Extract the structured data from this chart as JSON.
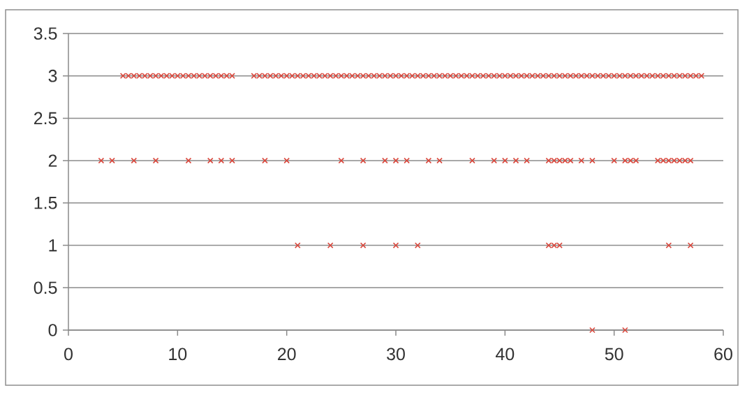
{
  "chart_data": {
    "type": "scatter",
    "x": [
      5,
      5.5,
      6,
      6.5,
      7,
      7.5,
      8,
      8.5,
      9,
      9.5,
      10,
      10.5,
      11,
      11.5,
      12,
      12.5,
      13,
      13.5,
      14,
      14.5,
      15,
      17,
      17.5,
      18,
      18.5,
      19,
      19.5,
      20,
      20.5,
      21,
      21.5,
      22,
      22.5,
      23,
      23.5,
      24,
      24.5,
      25,
      25.5,
      26,
      26.5,
      27,
      27.5,
      28,
      28.5,
      29,
      29.5,
      30,
      30.5,
      31,
      31.5,
      32,
      32.5,
      33,
      33.5,
      34,
      34.5,
      35,
      35.5,
      36,
      36.5,
      37,
      37.5,
      38,
      38.5,
      39,
      39.5,
      40,
      40.5,
      41,
      41.5,
      42,
      42.5,
      43,
      43.5,
      44,
      44.5,
      45,
      45.5,
      46,
      46.5,
      47,
      47.5,
      48,
      48.5,
      49,
      49.5,
      50,
      50.5,
      51,
      51.5,
      52,
      52.5,
      53,
      53.5,
      54,
      54.5,
      55,
      55.5,
      56,
      56.5,
      57,
      57.5,
      58,
      3,
      4,
      6,
      8,
      11,
      13,
      14,
      15,
      18,
      20,
      25,
      27,
      29,
      30,
      31,
      33,
      34,
      37,
      39,
      40,
      41,
      42,
      44,
      44.5,
      45,
      45.5,
      46,
      47,
      48,
      50,
      51,
      51.5,
      52,
      54,
      54.5,
      55,
      55.5,
      56,
      56.5,
      57,
      21,
      24,
      27,
      30,
      32,
      44,
      44.5,
      45,
      55,
      57,
      48,
      51
    ],
    "values": [
      3,
      3,
      3,
      3,
      3,
      3,
      3,
      3,
      3,
      3,
      3,
      3,
      3,
      3,
      3,
      3,
      3,
      3,
      3,
      3,
      3,
      3,
      3,
      3,
      3,
      3,
      3,
      3,
      3,
      3,
      3,
      3,
      3,
      3,
      3,
      3,
      3,
      3,
      3,
      3,
      3,
      3,
      3,
      3,
      3,
      3,
      3,
      3,
      3,
      3,
      3,
      3,
      3,
      3,
      3,
      3,
      3,
      3,
      3,
      3,
      3,
      3,
      3,
      3,
      3,
      3,
      3,
      3,
      3,
      3,
      3,
      3,
      3,
      3,
      3,
      3,
      3,
      3,
      3,
      3,
      3,
      3,
      3,
      3,
      3,
      3,
      3,
      3,
      3,
      3,
      3,
      3,
      3,
      3,
      3,
      3,
      3,
      3,
      3,
      3,
      3,
      3,
      3,
      3,
      2,
      2,
      2,
      2,
      2,
      2,
      2,
      2,
      2,
      2,
      2,
      2,
      2,
      2,
      2,
      2,
      2,
      2,
      2,
      2,
      2,
      2,
      2,
      2,
      2,
      2,
      2,
      2,
      2,
      2,
      2,
      2,
      2,
      2,
      2,
      2,
      2,
      2,
      2,
      2,
      1,
      1,
      1,
      1,
      1,
      1,
      1,
      1,
      1,
      1,
      0,
      0
    ],
    "color": "#d9473c",
    "marker": "cross",
    "xlim": [
      0,
      60
    ],
    "ylim": [
      0,
      3.5
    ],
    "xticks": [
      0,
      10,
      20,
      30,
      40,
      50,
      60
    ],
    "yticks": [
      0,
      0.5,
      1,
      1.5,
      2,
      2.5,
      3,
      3.5
    ],
    "grid": "y"
  }
}
